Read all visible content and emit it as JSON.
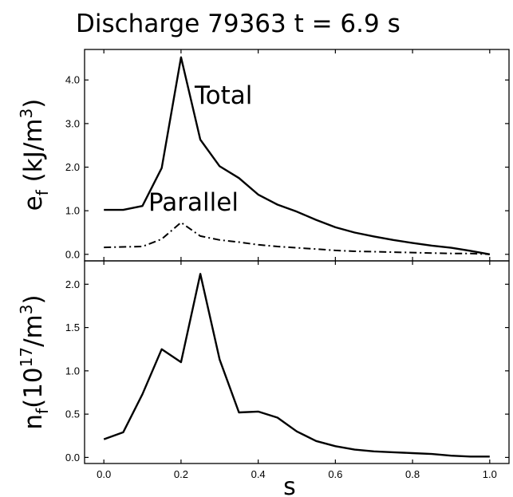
{
  "title": "Discharge 79363 t = 6.9 s",
  "xlabel": "s",
  "chart_data": [
    {
      "type": "line",
      "panel": "top",
      "ylabel": {
        "main": "e",
        "sub": "f",
        "open": " (kJ/m",
        "sup": "3",
        "close": ")"
      },
      "xlim": [
        -0.05,
        1.05
      ],
      "ylim": [
        -0.15,
        4.7
      ],
      "yticks": [
        0.0,
        1.0,
        2.0,
        3.0,
        4.0
      ],
      "ytick_labels": [
        "0.0",
        "1.0",
        "2.0",
        "3.0",
        "4.0"
      ],
      "series": [
        {
          "name": "Total",
          "style": "solid",
          "x": [
            0.0,
            0.05,
            0.1,
            0.15,
            0.2,
            0.25,
            0.3,
            0.35,
            0.4,
            0.45,
            0.5,
            0.55,
            0.6,
            0.65,
            0.7,
            0.75,
            0.8,
            0.85,
            0.9,
            0.95,
            1.0
          ],
          "y": [
            1.02,
            1.02,
            1.11,
            1.98,
            4.52,
            2.63,
            2.02,
            1.75,
            1.37,
            1.14,
            0.98,
            0.79,
            0.62,
            0.5,
            0.41,
            0.33,
            0.26,
            0.2,
            0.15,
            0.08,
            0.0
          ]
        },
        {
          "name": "Parallel",
          "style": "dashdot",
          "x": [
            0.0,
            0.05,
            0.1,
            0.15,
            0.2,
            0.25,
            0.3,
            0.35,
            0.4,
            0.45,
            0.5,
            0.55,
            0.6,
            0.65,
            0.7,
            0.75,
            0.8,
            0.85,
            0.9,
            0.95,
            1.0
          ],
          "y": [
            0.16,
            0.17,
            0.18,
            0.35,
            0.73,
            0.42,
            0.33,
            0.28,
            0.22,
            0.18,
            0.15,
            0.12,
            0.09,
            0.07,
            0.06,
            0.05,
            0.04,
            0.03,
            0.02,
            0.02,
            0.0
          ]
        }
      ],
      "annotations": [
        "Total",
        "Parallel"
      ]
    },
    {
      "type": "line",
      "panel": "bottom",
      "ylabel": {
        "main": "n",
        "sub": "f",
        "open": "(10",
        "sup": "17",
        "close": "/m",
        "sup2": "3",
        "close2": ")"
      },
      "xlim": [
        -0.05,
        1.05
      ],
      "ylim": [
        -0.07,
        2.27
      ],
      "yticks": [
        0.0,
        0.5,
        1.0,
        1.5,
        2.0
      ],
      "ytick_labels": [
        "0.0",
        "0.5",
        "1.0",
        "1.5",
        "2.0"
      ],
      "xticks": [
        0.0,
        0.2,
        0.4,
        0.6,
        0.8,
        1.0
      ],
      "xtick_labels": [
        "0.0",
        "0.2",
        "0.4",
        "0.6",
        "0.8",
        "1.0"
      ],
      "series": [
        {
          "style": "solid",
          "x": [
            0.0,
            0.05,
            0.1,
            0.15,
            0.2,
            0.25,
            0.3,
            0.35,
            0.4,
            0.45,
            0.5,
            0.55,
            0.6,
            0.65,
            0.7,
            0.75,
            0.8,
            0.85,
            0.9,
            0.95,
            1.0
          ],
          "y": [
            0.21,
            0.29,
            0.73,
            1.25,
            1.1,
            2.12,
            1.13,
            0.52,
            0.53,
            0.46,
            0.3,
            0.19,
            0.13,
            0.09,
            0.07,
            0.06,
            0.05,
            0.04,
            0.02,
            0.01,
            0.01
          ]
        }
      ]
    }
  ]
}
